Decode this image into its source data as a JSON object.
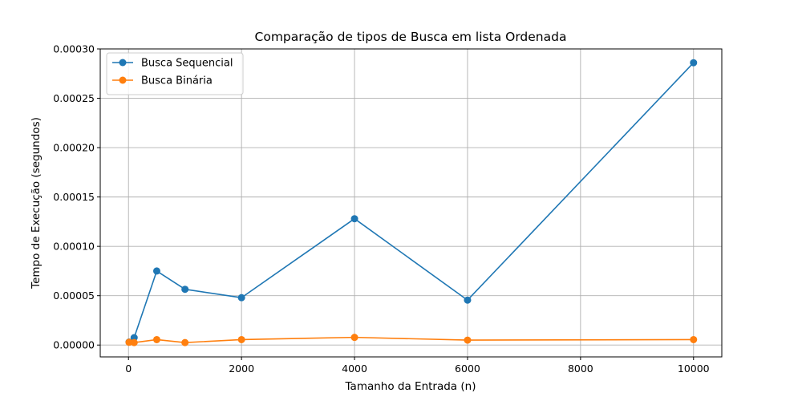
{
  "chart_data": {
    "type": "line",
    "title": "Comparação de tipos de Busca em lista Ordenada",
    "xlabel": "Tamanho da Entrada (n)",
    "ylabel": "Tempo de Execução (segundos)",
    "xlim": [
      -500,
      10500
    ],
    "ylim": [
      -1.2e-05,
      0.0003
    ],
    "xticks": [
      0,
      2000,
      4000,
      6000,
      8000,
      10000
    ],
    "xtick_labels": [
      "0",
      "2000",
      "4000",
      "6000",
      "8000",
      "10000"
    ],
    "yticks": [
      0,
      5e-05,
      0.0001,
      0.00015,
      0.0002,
      0.00025,
      0.0003
    ],
    "ytick_labels": [
      "0.00000",
      "0.00005",
      "0.00010",
      "0.00015",
      "0.00020",
      "0.00025",
      "0.00030"
    ],
    "grid": true,
    "legend_position": "top-left",
    "x": [
      10,
      100,
      500,
      1000,
      2000,
      4000,
      6000,
      10000
    ],
    "series": [
      {
        "name": "Busca Sequencial",
        "color": "#1f77b4",
        "marker": "circle",
        "values": [
          3e-06,
          7.5e-06,
          7.5e-05,
          5.65e-05,
          4.8e-05,
          0.000128,
          4.55e-05,
          0.000286
        ]
      },
      {
        "name": "Busca Binária",
        "color": "#ff7f0e",
        "marker": "circle",
        "values": [
          2.8e-06,
          2.5e-06,
          5.5e-06,
          2.5e-06,
          5.5e-06,
          7.8e-06,
          5e-06,
          5.5e-06
        ]
      }
    ]
  }
}
